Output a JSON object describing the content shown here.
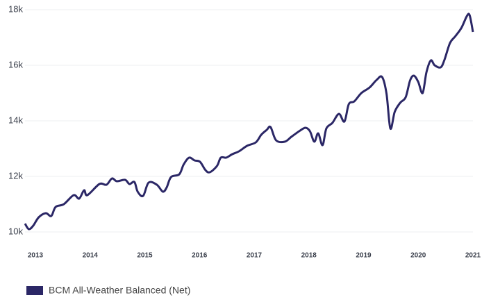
{
  "chart_data": {
    "type": "line",
    "x": [
      2012.81,
      2012.88,
      2012.96,
      2013.06,
      2013.19,
      2013.29,
      2013.37,
      2013.52,
      2013.7,
      2013.8,
      2013.89,
      2013.95,
      2014.17,
      2014.3,
      2014.4,
      2014.49,
      2014.64,
      2014.72,
      2014.81,
      2014.87,
      2014.97,
      2015.07,
      2015.22,
      2015.33,
      2015.4,
      2015.48,
      2015.63,
      2015.71,
      2015.81,
      2015.91,
      2016.01,
      2016.11,
      2016.19,
      2016.32,
      2016.39,
      2016.49,
      2016.6,
      2016.72,
      2016.87,
      2017.03,
      2017.13,
      2017.23,
      2017.3,
      2017.4,
      2017.56,
      2017.68,
      2017.84,
      2017.94,
      2018.02,
      2018.1,
      2018.17,
      2018.25,
      2018.32,
      2018.43,
      2018.55,
      2018.65,
      2018.73,
      2018.83,
      2018.96,
      2019.11,
      2019.24,
      2019.34,
      2019.42,
      2019.49,
      2019.57,
      2019.67,
      2019.77,
      2019.85,
      2019.92,
      2020.0,
      2020.08,
      2020.15,
      2020.23,
      2020.3,
      2020.41,
      2020.48,
      2020.58,
      2020.68,
      2020.79,
      2020.89,
      2020.94,
      2021.0
    ],
    "series": [
      {
        "name": "BCM All-Weather Balanced (Net)",
        "color": "#2b2766",
        "values": [
          10300,
          10100,
          10225,
          10525,
          10675,
          10575,
          10900,
          11000,
          11325,
          11200,
          11500,
          11325,
          11725,
          11700,
          11925,
          11825,
          11875,
          11725,
          11800,
          11450,
          11300,
          11775,
          11700,
          11450,
          11600,
          11975,
          12075,
          12425,
          12675,
          12575,
          12525,
          12225,
          12150,
          12375,
          12675,
          12675,
          12800,
          12900,
          13100,
          13225,
          13500,
          13675,
          13775,
          13300,
          13250,
          13425,
          13650,
          13750,
          13625,
          13250,
          13550,
          13125,
          13725,
          13925,
          14250,
          13975,
          14600,
          14700,
          15000,
          15200,
          15475,
          15575,
          14975,
          13725,
          14325,
          14650,
          14850,
          15450,
          15625,
          15400,
          15000,
          15750,
          16175,
          16000,
          15925,
          16200,
          16800,
          17050,
          17350,
          17775,
          17800,
          17200
        ]
      }
    ],
    "xlim": [
      2012.81,
      2021.0
    ],
    "xticks": [
      2013,
      2014,
      2015,
      2016,
      2017,
      2018,
      2019,
      2020,
      2021
    ],
    "ylim": [
      10000,
      18000
    ],
    "yticks": [
      {
        "value": 10000,
        "label": "10k"
      },
      {
        "value": 12000,
        "label": "12k"
      },
      {
        "value": 14000,
        "label": "14k"
      },
      {
        "value": 16000,
        "label": "16k"
      },
      {
        "value": 18000,
        "label": "18k"
      }
    ],
    "grid": true
  }
}
